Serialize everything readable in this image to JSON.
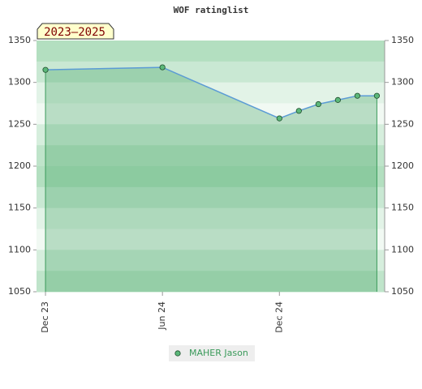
{
  "chart_data": {
    "type": "line",
    "title": "WOF ratinglist",
    "annotation": "2023–2025",
    "x": [
      0,
      6,
      12,
      13,
      14,
      15,
      16,
      17
    ],
    "xlim": [
      -0.46,
      17.4
    ],
    "xticks": [
      {
        "value": 0,
        "label": "Dec 23"
      },
      {
        "value": 6,
        "label": "Jun 24"
      },
      {
        "value": 12,
        "label": "Dec 24"
      }
    ],
    "ylim": [
      1050,
      1350
    ],
    "yticks": [
      1050,
      1100,
      1150,
      1200,
      1250,
      1300,
      1350
    ],
    "series": [
      {
        "name": "MAHER Jason",
        "color": "#5cb87a",
        "line_color": "#5b9bd5",
        "values": [
          1315,
          1318,
          1257,
          1266,
          1274,
          1279,
          1284,
          1284
        ]
      }
    ]
  }
}
